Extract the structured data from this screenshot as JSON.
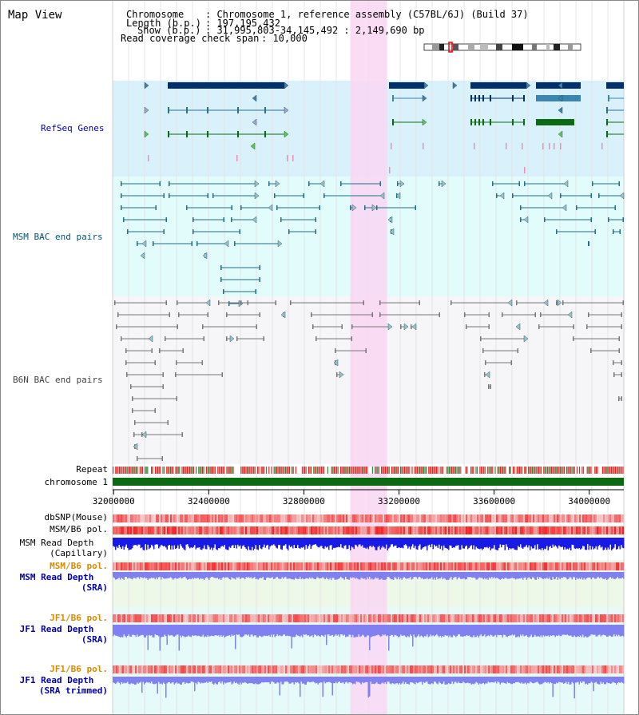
{
  "page": {
    "title": "Map View"
  },
  "header": {
    "chromosome_label": "Chromosome",
    "chromosome_value": ": Chromosome 1, reference assembly (C57BL/6J) (Build 37)",
    "length_label": "Length (b.p.)",
    "length_value": ": 197,195,432",
    "show_label": "Show (b.p.)",
    "show_value": ": 31,995,803-34,145,492 : 2,149,690 bp",
    "coverage_label": "Read coverage check span",
    "coverage_value": ": 10,000"
  },
  "tracks": {
    "refseq": "RefSeq Genes",
    "msm_bac": "MSM BAC end pairs",
    "b6n_bac": "B6N BAC end pairs",
    "repeat": "Repeat",
    "chromosome": "chromosome 1",
    "dbsnp": "dbSNP(Mouse)",
    "msm_b6_pol": "MSM/B6 pol.",
    "msm_depth_cap_1": "MSM Read Depth",
    "msm_depth_cap_2": "(Capillary)",
    "msm_b6_pol_sra": "MSM/B6 pol.",
    "msm_depth_sra_1": "MSM Read Depth",
    "msm_depth_sra_2": "(SRA)",
    "jf1_b6_pol": "JF1/B6 pol.",
    "jf1_depth_sra_1": "JF1 Read Depth",
    "jf1_depth_sra_2": "(SRA)",
    "jf1_b6_pol_trim": "JF1/B6 pol.",
    "jf1_depth_trim_1": "JF1 Read Depth",
    "jf1_depth_trim_2": "(SRA trimmed)"
  },
  "axis": {
    "range": [
      31995803,
      34145492
    ],
    "ticks": [
      "32000000",
      "32400000",
      "32800000",
      "33200000",
      "33600000",
      "34000000"
    ],
    "tick_values": [
      32000000,
      32400000,
      32800000,
      33200000,
      33600000,
      34000000
    ]
  },
  "highlight": {
    "start": 32995000,
    "end": 33150000
  },
  "colors": {
    "refseq_bg": "#d9f1fb",
    "msm_bg": "#e2fbfb",
    "b6n_bg": "#f6f6f9",
    "highlight": "#f9d7f3",
    "refseq_dark": "#002f6c",
    "refseq_mid": "#3a86b3",
    "refseq_green": "#0b6b10",
    "msm_pair": "#1f6f86",
    "b6n_pair": "#777777",
    "chromosome_bar": "#0b6a12",
    "depth_capillary": "#1a1ae6",
    "depth_sra": "#8080f0",
    "label_orange": "#d98a00",
    "label_blue": "#0000aa",
    "label_teal": "#005577"
  }
}
